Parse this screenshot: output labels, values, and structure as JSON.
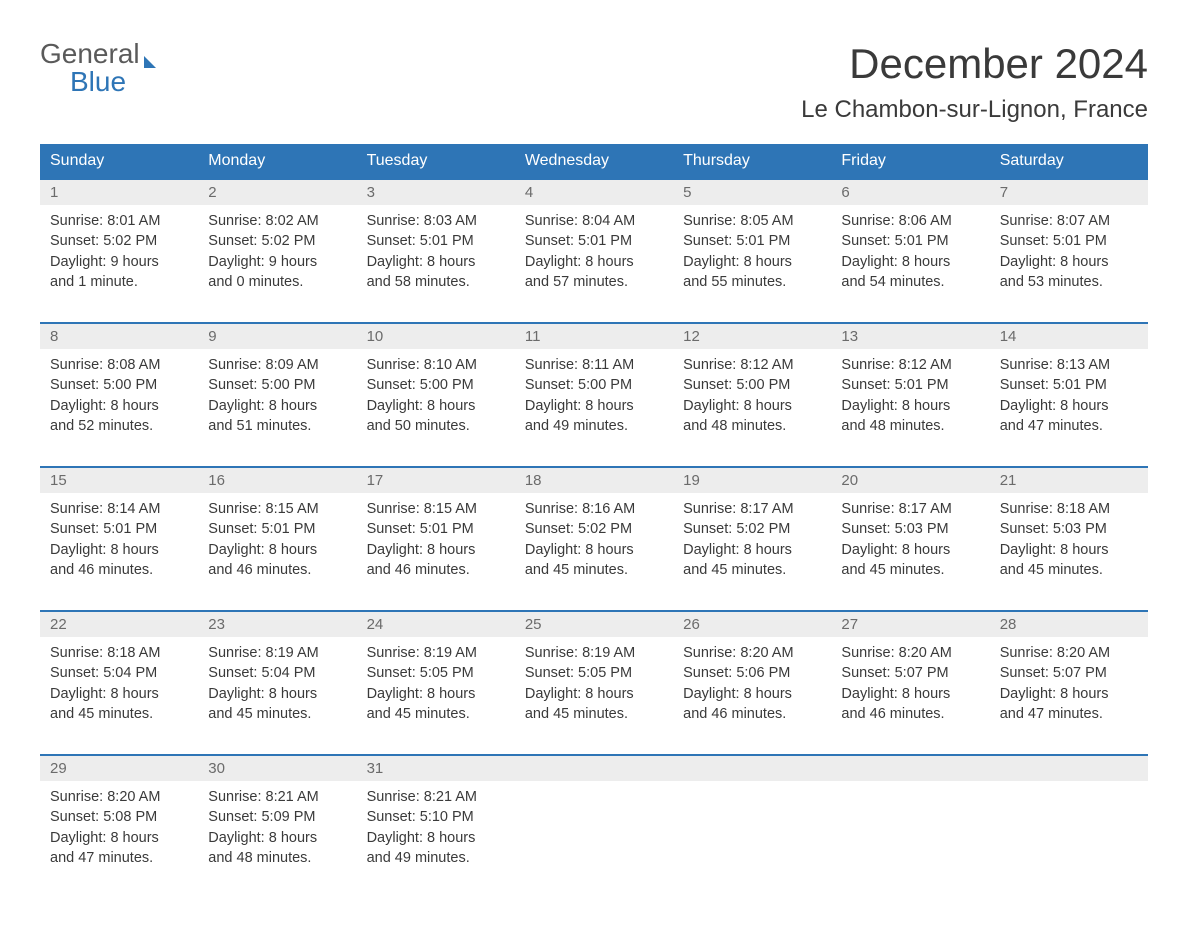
{
  "logo": {
    "line1": "General",
    "line2": "Blue"
  },
  "title": "December 2024",
  "location": "Le Chambon-sur-Lignon, France",
  "weekdays": [
    "Sunday",
    "Monday",
    "Tuesday",
    "Wednesday",
    "Thursday",
    "Friday",
    "Saturday"
  ],
  "colors": {
    "header_bg": "#2e75b6",
    "header_text": "#ffffff",
    "day_number_bg": "#ededed",
    "day_number_text": "#6b6b6b",
    "body_text": "#3a3a3a",
    "border": "#2e75b6",
    "logo_gray": "#5a5a5a",
    "logo_blue": "#2e75b6"
  },
  "weeks": [
    [
      {
        "day": "1",
        "sunrise": "Sunrise: 8:01 AM",
        "sunset": "Sunset: 5:02 PM",
        "daylight1": "Daylight: 9 hours",
        "daylight2": "and 1 minute."
      },
      {
        "day": "2",
        "sunrise": "Sunrise: 8:02 AM",
        "sunset": "Sunset: 5:02 PM",
        "daylight1": "Daylight: 9 hours",
        "daylight2": "and 0 minutes."
      },
      {
        "day": "3",
        "sunrise": "Sunrise: 8:03 AM",
        "sunset": "Sunset: 5:01 PM",
        "daylight1": "Daylight: 8 hours",
        "daylight2": "and 58 minutes."
      },
      {
        "day": "4",
        "sunrise": "Sunrise: 8:04 AM",
        "sunset": "Sunset: 5:01 PM",
        "daylight1": "Daylight: 8 hours",
        "daylight2": "and 57 minutes."
      },
      {
        "day": "5",
        "sunrise": "Sunrise: 8:05 AM",
        "sunset": "Sunset: 5:01 PM",
        "daylight1": "Daylight: 8 hours",
        "daylight2": "and 55 minutes."
      },
      {
        "day": "6",
        "sunrise": "Sunrise: 8:06 AM",
        "sunset": "Sunset: 5:01 PM",
        "daylight1": "Daylight: 8 hours",
        "daylight2": "and 54 minutes."
      },
      {
        "day": "7",
        "sunrise": "Sunrise: 8:07 AM",
        "sunset": "Sunset: 5:01 PM",
        "daylight1": "Daylight: 8 hours",
        "daylight2": "and 53 minutes."
      }
    ],
    [
      {
        "day": "8",
        "sunrise": "Sunrise: 8:08 AM",
        "sunset": "Sunset: 5:00 PM",
        "daylight1": "Daylight: 8 hours",
        "daylight2": "and 52 minutes."
      },
      {
        "day": "9",
        "sunrise": "Sunrise: 8:09 AM",
        "sunset": "Sunset: 5:00 PM",
        "daylight1": "Daylight: 8 hours",
        "daylight2": "and 51 minutes."
      },
      {
        "day": "10",
        "sunrise": "Sunrise: 8:10 AM",
        "sunset": "Sunset: 5:00 PM",
        "daylight1": "Daylight: 8 hours",
        "daylight2": "and 50 minutes."
      },
      {
        "day": "11",
        "sunrise": "Sunrise: 8:11 AM",
        "sunset": "Sunset: 5:00 PM",
        "daylight1": "Daylight: 8 hours",
        "daylight2": "and 49 minutes."
      },
      {
        "day": "12",
        "sunrise": "Sunrise: 8:12 AM",
        "sunset": "Sunset: 5:00 PM",
        "daylight1": "Daylight: 8 hours",
        "daylight2": "and 48 minutes."
      },
      {
        "day": "13",
        "sunrise": "Sunrise: 8:12 AM",
        "sunset": "Sunset: 5:01 PM",
        "daylight1": "Daylight: 8 hours",
        "daylight2": "and 48 minutes."
      },
      {
        "day": "14",
        "sunrise": "Sunrise: 8:13 AM",
        "sunset": "Sunset: 5:01 PM",
        "daylight1": "Daylight: 8 hours",
        "daylight2": "and 47 minutes."
      }
    ],
    [
      {
        "day": "15",
        "sunrise": "Sunrise: 8:14 AM",
        "sunset": "Sunset: 5:01 PM",
        "daylight1": "Daylight: 8 hours",
        "daylight2": "and 46 minutes."
      },
      {
        "day": "16",
        "sunrise": "Sunrise: 8:15 AM",
        "sunset": "Sunset: 5:01 PM",
        "daylight1": "Daylight: 8 hours",
        "daylight2": "and 46 minutes."
      },
      {
        "day": "17",
        "sunrise": "Sunrise: 8:15 AM",
        "sunset": "Sunset: 5:01 PM",
        "daylight1": "Daylight: 8 hours",
        "daylight2": "and 46 minutes."
      },
      {
        "day": "18",
        "sunrise": "Sunrise: 8:16 AM",
        "sunset": "Sunset: 5:02 PM",
        "daylight1": "Daylight: 8 hours",
        "daylight2": "and 45 minutes."
      },
      {
        "day": "19",
        "sunrise": "Sunrise: 8:17 AM",
        "sunset": "Sunset: 5:02 PM",
        "daylight1": "Daylight: 8 hours",
        "daylight2": "and 45 minutes."
      },
      {
        "day": "20",
        "sunrise": "Sunrise: 8:17 AM",
        "sunset": "Sunset: 5:03 PM",
        "daylight1": "Daylight: 8 hours",
        "daylight2": "and 45 minutes."
      },
      {
        "day": "21",
        "sunrise": "Sunrise: 8:18 AM",
        "sunset": "Sunset: 5:03 PM",
        "daylight1": "Daylight: 8 hours",
        "daylight2": "and 45 minutes."
      }
    ],
    [
      {
        "day": "22",
        "sunrise": "Sunrise: 8:18 AM",
        "sunset": "Sunset: 5:04 PM",
        "daylight1": "Daylight: 8 hours",
        "daylight2": "and 45 minutes."
      },
      {
        "day": "23",
        "sunrise": "Sunrise: 8:19 AM",
        "sunset": "Sunset: 5:04 PM",
        "daylight1": "Daylight: 8 hours",
        "daylight2": "and 45 minutes."
      },
      {
        "day": "24",
        "sunrise": "Sunrise: 8:19 AM",
        "sunset": "Sunset: 5:05 PM",
        "daylight1": "Daylight: 8 hours",
        "daylight2": "and 45 minutes."
      },
      {
        "day": "25",
        "sunrise": "Sunrise: 8:19 AM",
        "sunset": "Sunset: 5:05 PM",
        "daylight1": "Daylight: 8 hours",
        "daylight2": "and 45 minutes."
      },
      {
        "day": "26",
        "sunrise": "Sunrise: 8:20 AM",
        "sunset": "Sunset: 5:06 PM",
        "daylight1": "Daylight: 8 hours",
        "daylight2": "and 46 minutes."
      },
      {
        "day": "27",
        "sunrise": "Sunrise: 8:20 AM",
        "sunset": "Sunset: 5:07 PM",
        "daylight1": "Daylight: 8 hours",
        "daylight2": "and 46 minutes."
      },
      {
        "day": "28",
        "sunrise": "Sunrise: 8:20 AM",
        "sunset": "Sunset: 5:07 PM",
        "daylight1": "Daylight: 8 hours",
        "daylight2": "and 47 minutes."
      }
    ],
    [
      {
        "day": "29",
        "sunrise": "Sunrise: 8:20 AM",
        "sunset": "Sunset: 5:08 PM",
        "daylight1": "Daylight: 8 hours",
        "daylight2": "and 47 minutes."
      },
      {
        "day": "30",
        "sunrise": "Sunrise: 8:21 AM",
        "sunset": "Sunset: 5:09 PM",
        "daylight1": "Daylight: 8 hours",
        "daylight2": "and 48 minutes."
      },
      {
        "day": "31",
        "sunrise": "Sunrise: 8:21 AM",
        "sunset": "Sunset: 5:10 PM",
        "daylight1": "Daylight: 8 hours",
        "daylight2": "and 49 minutes."
      },
      {
        "empty": true
      },
      {
        "empty": true
      },
      {
        "empty": true
      },
      {
        "empty": true
      }
    ]
  ]
}
